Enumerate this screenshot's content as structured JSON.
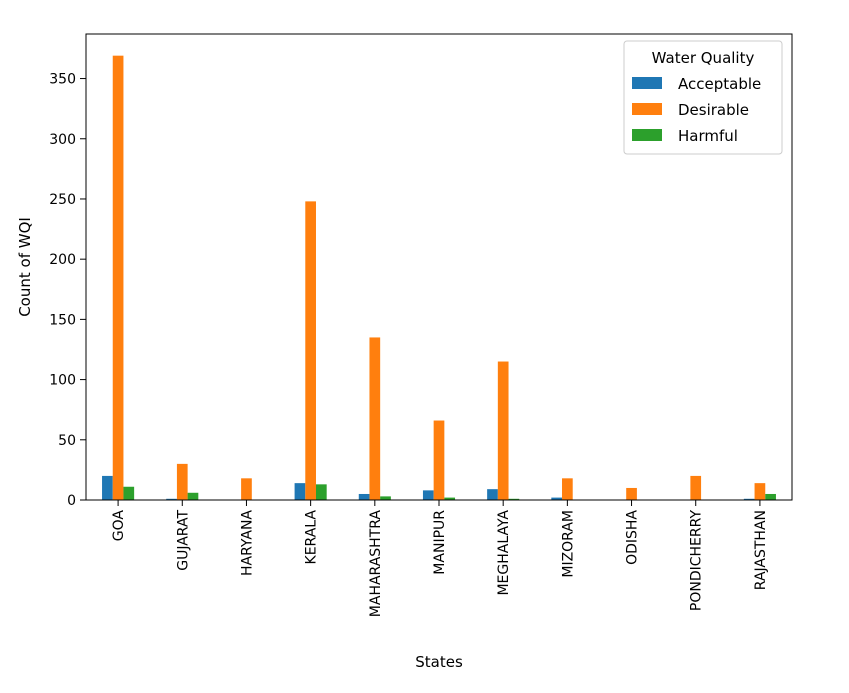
{
  "chart_data": {
    "type": "bar",
    "title": "",
    "xlabel": "States",
    "ylabel": "Count of WQI",
    "categories": [
      "GOA",
      "GUJARAT",
      "HARYANA",
      "KERALA",
      "MAHARASHTRA",
      "MANIPUR",
      "MEGHALAYA",
      "MIZORAM",
      "ODISHA",
      "PONDICHERRY",
      "RAJASTHAN"
    ],
    "series": [
      {
        "name": "Acceptable",
        "color": "#1f77b4",
        "values": [
          20,
          1,
          0,
          14,
          5,
          8,
          9,
          2,
          0,
          0,
          1
        ]
      },
      {
        "name": "Desirable",
        "color": "#ff7f0e",
        "values": [
          369,
          30,
          18,
          248,
          135,
          66,
          115,
          18,
          10,
          20,
          14
        ]
      },
      {
        "name": "Harmful",
        "color": "#2ca02c",
        "values": [
          11,
          6,
          0,
          13,
          3,
          2,
          1,
          0,
          0,
          0,
          5
        ]
      }
    ],
    "ylim": [
      0,
      387
    ],
    "yticks": [
      0,
      50,
      100,
      150,
      200,
      250,
      300,
      350
    ],
    "grid": false,
    "legend": {
      "title": "Water Quality",
      "position": "top-right"
    }
  }
}
